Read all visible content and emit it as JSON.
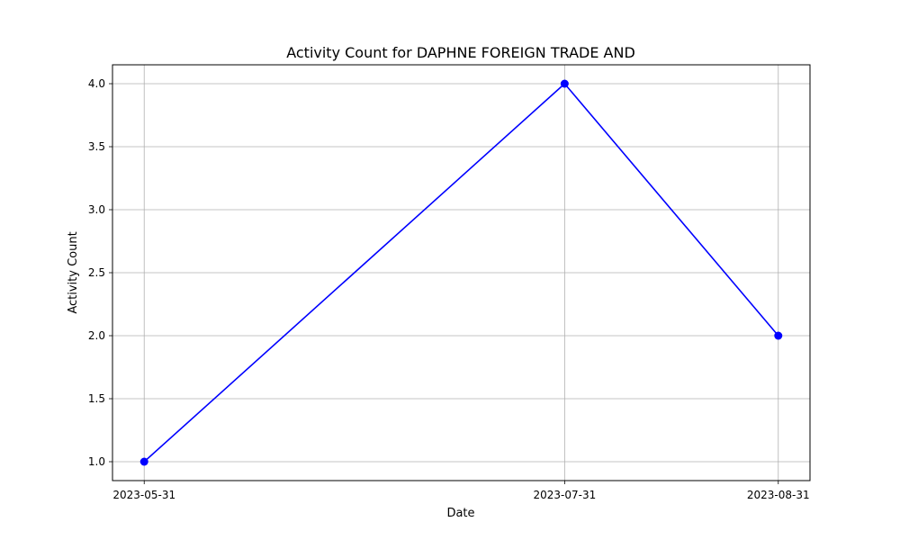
{
  "chart_data": {
    "type": "line",
    "title": "Activity Count for DAPHNE FOREIGN TRADE AND",
    "xlabel": "Date",
    "ylabel": "Activity Count",
    "x": [
      "2023-05-31",
      "2023-07-31",
      "2023-08-31"
    ],
    "x_ticks": [
      "2023-05-31",
      "2023-07-31",
      "2023-08-31"
    ],
    "series": [
      {
        "values": [
          1,
          4,
          2
        ],
        "color": "#0000ff",
        "marker": "circle"
      }
    ],
    "ylim": [
      0.85,
      4.15
    ],
    "y_ticks": [
      1.0,
      1.5,
      2.0,
      2.5,
      3.0,
      3.5,
      4.0
    ],
    "y_tick_labels": [
      "1.0",
      "1.5",
      "2.0",
      "2.5",
      "3.0",
      "3.5",
      "4.0"
    ],
    "grid": true,
    "grid_color": "#b0b0b0"
  }
}
